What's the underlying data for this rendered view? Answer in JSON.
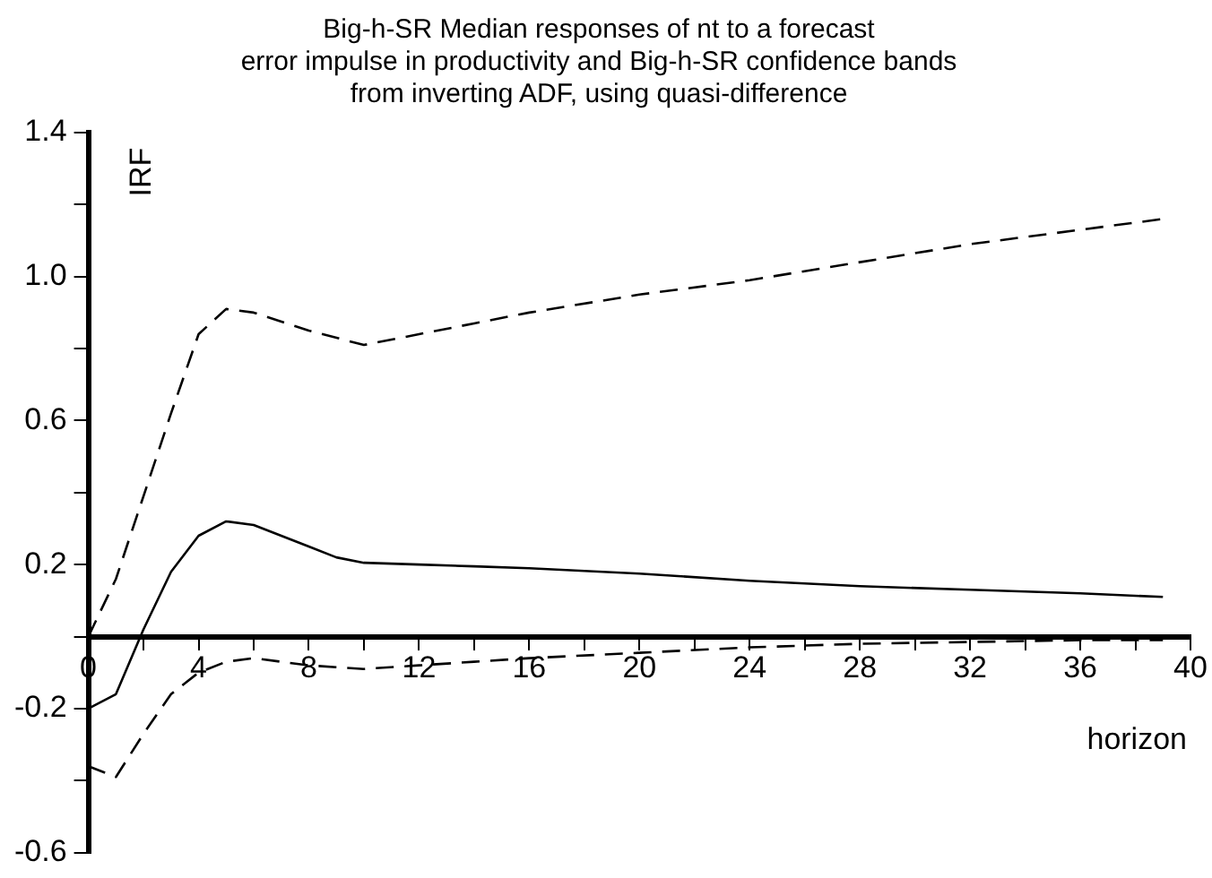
{
  "chart_data": {
    "type": "line",
    "title": "Big-h-SR Median responses of nt to a forecast\nerror impulse in productivity and Big-h-SR confidence bands\nfrom inverting ADF, using quasi-difference",
    "xlabel": "horizon",
    "ylabel": "IRF",
    "series": [
      {
        "color": "#000000",
        "line_style": "solid",
        "x": [
          0,
          1,
          2,
          3,
          4,
          5,
          6,
          8,
          9,
          10,
          12,
          14,
          16,
          20,
          24,
          28,
          32,
          36,
          39
        ],
        "values": [
          -0.2,
          -0.16,
          0.02,
          0.18,
          0.28,
          0.32,
          0.31,
          0.25,
          0.22,
          0.205,
          0.2,
          0.195,
          0.19,
          0.175,
          0.155,
          0.14,
          0.13,
          0.12,
          0.11
        ]
      },
      {
        "color": "#000000",
        "line_style": "dashed",
        "x": [
          0,
          1,
          2,
          3,
          4,
          5,
          6,
          8,
          10,
          12,
          14,
          16,
          20,
          24,
          28,
          32,
          36,
          39
        ],
        "values": [
          0,
          0.16,
          0.39,
          0.62,
          0.84,
          0.91,
          0.9,
          0.85,
          0.81,
          0.84,
          0.87,
          0.9,
          0.95,
          0.99,
          1.04,
          1.09,
          1.13,
          1.16
        ]
      },
      {
        "color": "#000000",
        "line_style": "dashed",
        "x": [
          0,
          1,
          2,
          3,
          4,
          5,
          6,
          8,
          10,
          12,
          14,
          16,
          20,
          24,
          28,
          32,
          36,
          39
        ],
        "values": [
          -0.36,
          -0.39,
          -0.27,
          -0.16,
          -0.1,
          -0.07,
          -0.06,
          -0.08,
          -0.09,
          -0.08,
          -0.07,
          -0.06,
          -0.045,
          -0.03,
          -0.02,
          -0.015,
          -0.01,
          -0.01
        ]
      }
    ],
    "xlim": [
      0,
      40
    ],
    "xticks": [
      0,
      {
        "value": 2,
        "label": null
      },
      4,
      {
        "value": 6,
        "label": null
      },
      8,
      {
        "value": 10,
        "label": null
      },
      12,
      {
        "value": 14,
        "label": null
      },
      16,
      {
        "value": 18,
        "label": null
      },
      20,
      {
        "value": 22,
        "label": null
      },
      24,
      {
        "value": 26,
        "label": null
      },
      28,
      {
        "value": 30,
        "label": null
      },
      32,
      {
        "value": 34,
        "label": null
      },
      36,
      {
        "value": 38,
        "label": null
      },
      40
    ],
    "ylim": [
      -0.6,
      1.4
    ],
    "yticks": [
      -0.6,
      {
        "value": -0.4,
        "label": null
      },
      -0.2,
      {
        "value": 0,
        "label": null
      },
      0.2,
      {
        "value": 0.4,
        "label": null
      },
      0.6,
      {
        "value": 0.8,
        "label": null
      },
      {
        "value": 1,
        "label": "1.0"
      },
      {
        "value": 1.2,
        "label": null
      },
      1.4
    ],
    "grid": false,
    "legend": false,
    "marker": "none"
  }
}
